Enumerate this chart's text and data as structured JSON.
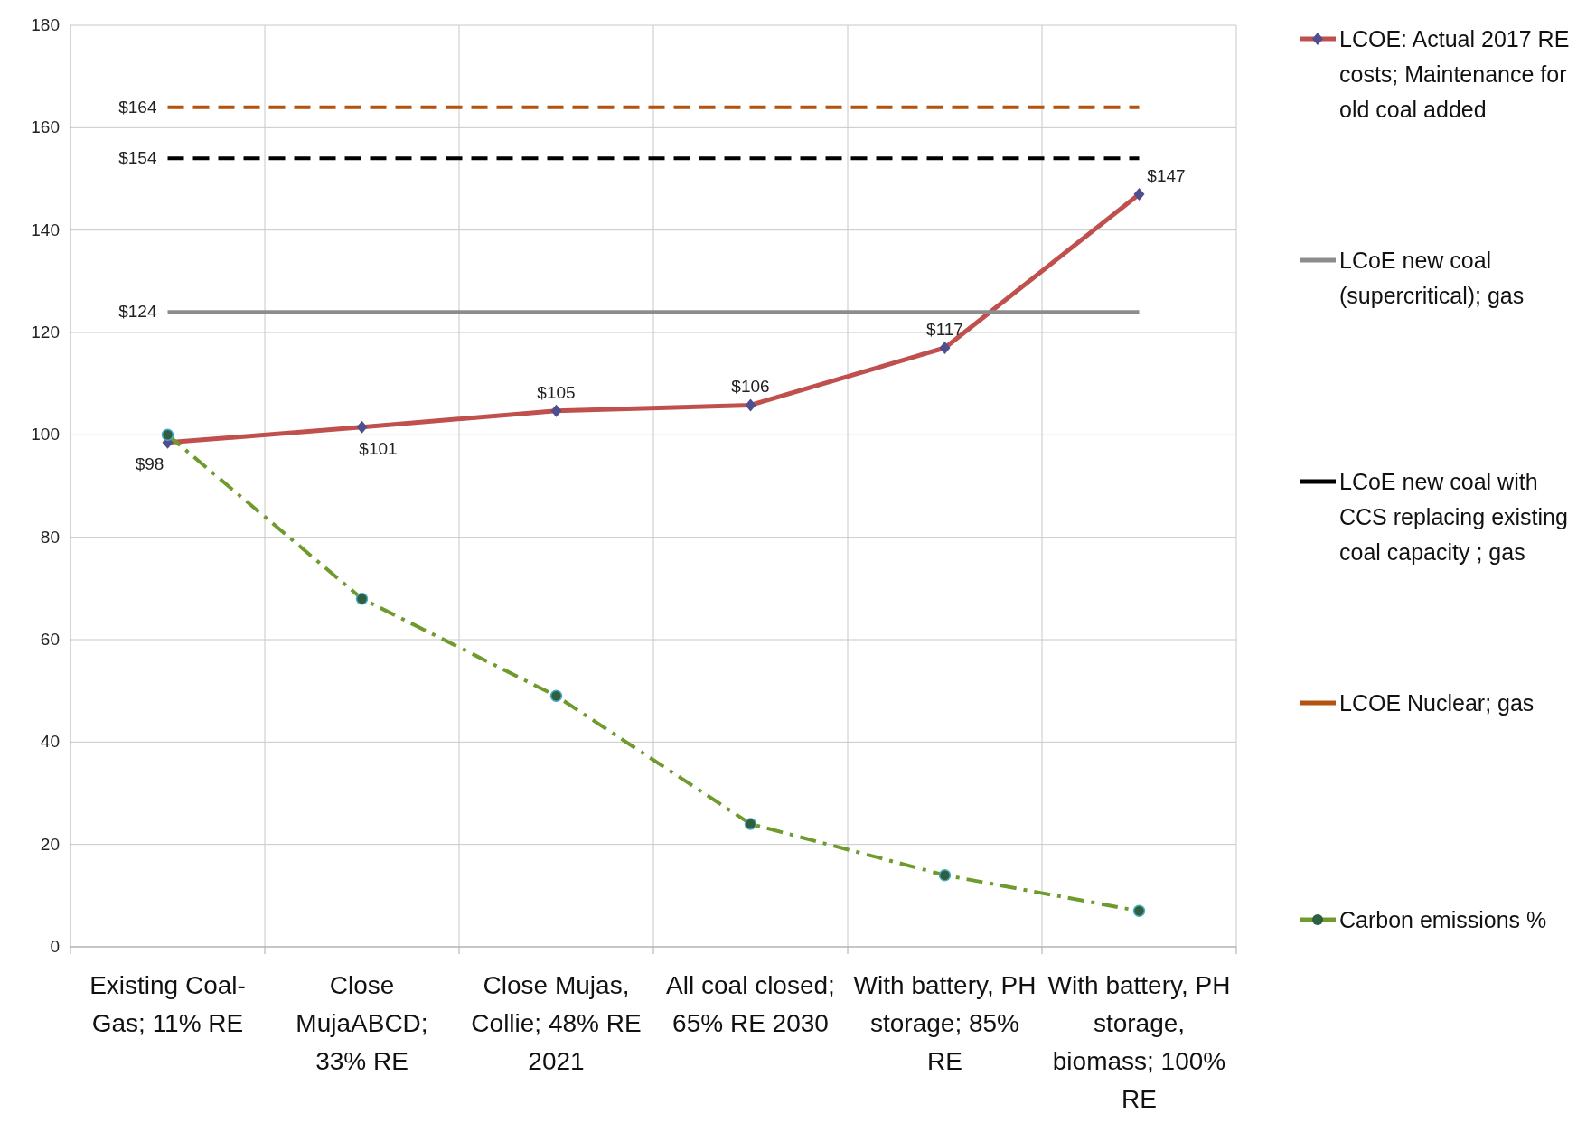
{
  "chart_data": {
    "type": "line",
    "categories": [
      "Existing Coal-Gas; 11% RE",
      "Close MujaABCD; 33% RE",
      "Close Mujas, Collie; 48% RE 2021",
      "All coal closed; 65% RE 2030",
      "With battery, PH storage; 85% RE",
      "With battery, PH storage, biomass; 100% RE"
    ],
    "series": [
      {
        "name": "LCOE: Actual 2017 RE costs; Maintenance for old coal added",
        "color": "#c0504d",
        "values": [
          98.5,
          101.5,
          104.7,
          105.8,
          117,
          147
        ],
        "value_labels": [
          "$98",
          "$101",
          "$105",
          "$106",
          "$117",
          "$147"
        ],
        "marker": "diamond",
        "line_style": "solid"
      },
      {
        "name": "LCoE new coal (supercritical); gas",
        "color": "#8c8c8c",
        "values": [
          124,
          124,
          124,
          124,
          124,
          124
        ],
        "value_labels": [
          "$124",
          null,
          null,
          null,
          null,
          null
        ],
        "marker": "none",
        "line_style": "solid"
      },
      {
        "name": "LCoE new coal with CCS replacing existing coal capacity ;  gas",
        "color": "#000000",
        "values": [
          154,
          154,
          154,
          154,
          154,
          154
        ],
        "value_labels": [
          "$154",
          null,
          null,
          null,
          null,
          null
        ],
        "marker": "none",
        "line_style": "dashed"
      },
      {
        "name": "LCOE Nuclear; gas",
        "color": "#b3530f",
        "values": [
          164,
          164,
          164,
          164,
          164,
          164
        ],
        "value_labels": [
          "$164",
          null,
          null,
          null,
          null,
          null
        ],
        "marker": "none",
        "line_style": "dashed"
      },
      {
        "name": "Carbon emissions %",
        "color": "#6f9a2e",
        "values": [
          100,
          68,
          49,
          24,
          14,
          7
        ],
        "marker": "circle",
        "line_style": "dashdot"
      }
    ],
    "ylim": [
      0,
      180
    ],
    "yticks": [
      0,
      20,
      40,
      60,
      80,
      100,
      120,
      140,
      160,
      180
    ],
    "grid": true,
    "legend": "right"
  }
}
